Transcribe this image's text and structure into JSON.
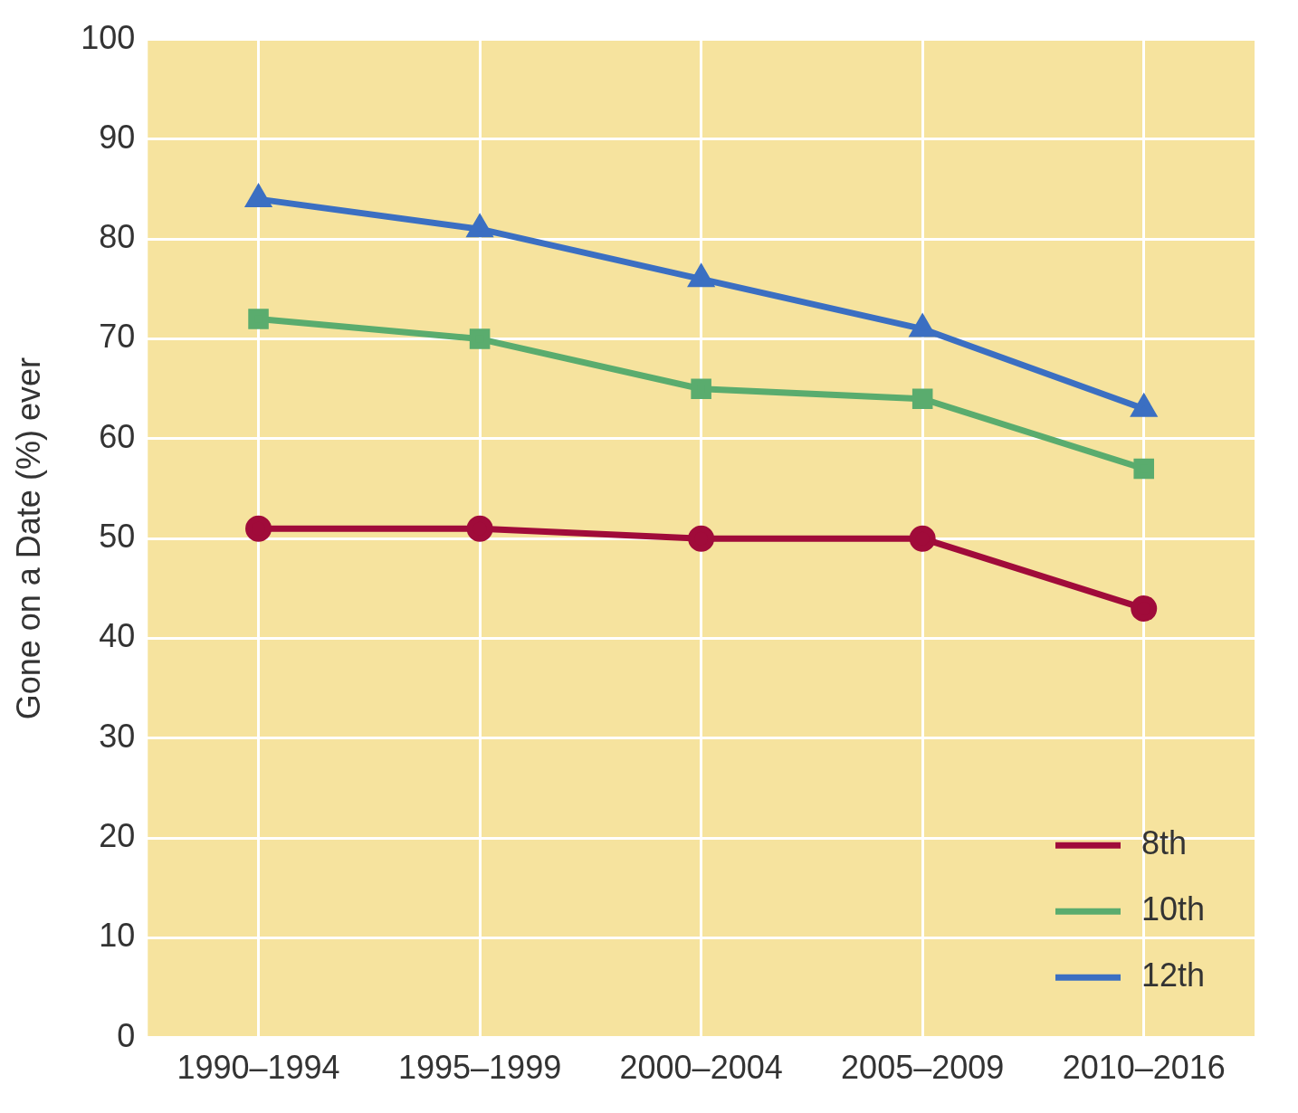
{
  "chart_data": {
    "type": "line",
    "ylabel": "Gone on a Date (%) ever",
    "categories": [
      "1990–1994",
      "1995–1999",
      "2000–2004",
      "2005–2009",
      "2010–2016"
    ],
    "series": [
      {
        "name": "8th",
        "color": "#a00b3a",
        "marker": "circle",
        "values": [
          51,
          51,
          50,
          50,
          43
        ]
      },
      {
        "name": "10th",
        "color": "#5aac6e",
        "marker": "square",
        "values": [
          72,
          70,
          65,
          64,
          57
        ]
      },
      {
        "name": "12th",
        "color": "#3b6fc2",
        "marker": "triangle",
        "values": [
          84,
          81,
          76,
          71,
          63
        ]
      }
    ],
    "ylim": [
      0,
      100
    ],
    "yticks": [
      0,
      10,
      20,
      30,
      40,
      50,
      60,
      70,
      80,
      90,
      100
    ],
    "grid": true,
    "legend": "bottom right",
    "line_style": "solid"
  }
}
